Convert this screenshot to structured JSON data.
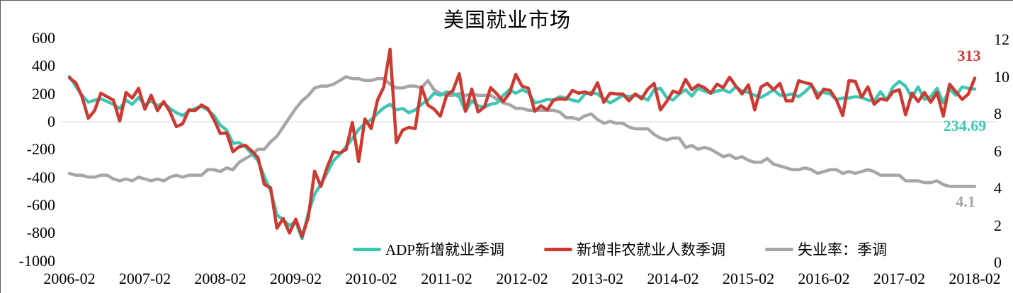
{
  "title": "美国就业市场",
  "legend": {
    "items": [
      {
        "label": "ADP新增就业季调",
        "color": "#3EC6B4"
      },
      {
        "label": "新增非农就业人数季调",
        "color": "#CB3A33"
      },
      {
        "label": "失业率：季调",
        "color": "#A6A6A6"
      }
    ]
  },
  "annotations": {
    "nfp_last": "313",
    "adp_last": "234.69",
    "unemp_last": "4.1"
  },
  "colors": {
    "adp": "#3EC6B4",
    "nonfarm": "#CB3A33",
    "unemployment": "#A6A6A6",
    "gridline": "#D6D6D6",
    "text": "#000000"
  },
  "chart_data": {
    "type": "line",
    "title": "美国就业市场",
    "x_start": "2006-02",
    "x_end": "2018-02",
    "frequency": "monthly",
    "x_tick_labels": [
      "2006-02",
      "2007-02",
      "2008-02",
      "2009-02",
      "2010-02",
      "2011-02",
      "2012-02",
      "2013-02",
      "2014-02",
      "2015-02",
      "2016-02",
      "2017-02",
      "2018-02"
    ],
    "left_axis": {
      "ticks": [
        600,
        400,
        200,
        0,
        -200,
        -400,
        -600,
        -800,
        -1000
      ],
      "range": [
        -1000,
        600
      ]
    },
    "right_axis": {
      "ticks": [
        12,
        10,
        8,
        6,
        4,
        2,
        0
      ],
      "range": [
        0,
        12
      ]
    },
    "gridlines": [
      0
    ],
    "legend_position": "bottom",
    "series": [
      {
        "name": "ADP新增就业季调",
        "axis": "left",
        "color": "#3EC6B4",
        "last_label": "234.69",
        "values": [
          325,
          255,
          190,
          140,
          155,
          165,
          145,
          125,
          95,
          155,
          125,
          175,
          120,
          150,
          115,
          135,
          95,
          65,
          45,
          75,
          95,
          110,
          85,
          45,
          -25,
          -60,
          -155,
          -150,
          -180,
          -230,
          -280,
          -395,
          -495,
          -670,
          -705,
          -745,
          -720,
          -840,
          -655,
          -520,
          -450,
          -365,
          -280,
          -235,
          -180,
          -120,
          -55,
          -15,
          15,
          60,
          100,
          125,
          85,
          95,
          65,
          85,
          125,
          155,
          205,
          190,
          215,
          205,
          180,
          75,
          150,
          115,
          105,
          125,
          135,
          190,
          230,
          205,
          230,
          210,
          135,
          145,
          160,
          155,
          180,
          170,
          155,
          145,
          200,
          210,
          200,
          165,
          135,
          160,
          190,
          180,
          190,
          180,
          155,
          230,
          240,
          175,
          155,
          200,
          230,
          185,
          240,
          220,
          205,
          220,
          230,
          210,
          250,
          220,
          210,
          190,
          175,
          200,
          230,
          190,
          190,
          200,
          180,
          215,
          260,
          205,
          210,
          200,
          160,
          170,
          170,
          180,
          175,
          155,
          150,
          215,
          155,
          250,
          290,
          255,
          175,
          250,
          160,
          180,
          240,
          135,
          235,
          190,
          250,
          240,
          234.69
        ]
      },
      {
        "name": "新增非农就业人数季调",
        "axis": "left",
        "color": "#CB3A33",
        "last_label": "313",
        "values": [
          315,
          280,
          180,
          25,
          80,
          205,
          180,
          155,
          5,
          210,
          170,
          240,
          90,
          190,
          80,
          145,
          70,
          -35,
          -15,
          85,
          80,
          120,
          95,
          15,
          -85,
          -80,
          -215,
          -180,
          -170,
          -210,
          -260,
          -450,
          -475,
          -765,
          -695,
          -800,
          -700,
          -825,
          -685,
          -355,
          -465,
          -325,
          -215,
          -225,
          -200,
          -5,
          -285,
          20,
          -50,
          155,
          250,
          520,
          -150,
          -60,
          -40,
          -50,
          250,
          120,
          90,
          40,
          190,
          225,
          345,
          75,
          235,
          70,
          105,
          245,
          200,
          145,
          205,
          340,
          255,
          240,
          75,
          115,
          85,
          155,
          165,
          160,
          225,
          205,
          215,
          195,
          280,
          140,
          205,
          200,
          200,
          150,
          200,
          165,
          235,
          275,
          85,
          145,
          220,
          205,
          305,
          230,
          265,
          245,
          205,
          270,
          245,
          320,
          255,
          200,
          265,
          85,
          250,
          275,
          230,
          275,
          150,
          150,
          295,
          280,
          270,
          170,
          235,
          225,
          155,
          45,
          295,
          290,
          175,
          250,
          125,
          165,
          155,
          215,
          230,
          50,
          205,
          145,
          210,
          140,
          210,
          40,
          270,
          215,
          160,
          200,
          313
        ]
      },
      {
        "name": "失业率：季调",
        "axis": "right",
        "color": "#A6A6A6",
        "last_label": "4.1",
        "values": [
          4.8,
          4.7,
          4.7,
          4.6,
          4.6,
          4.7,
          4.7,
          4.5,
          4.4,
          4.5,
          4.4,
          4.6,
          4.5,
          4.4,
          4.5,
          4.4,
          4.6,
          4.7,
          4.6,
          4.7,
          4.7,
          4.7,
          5.0,
          5.0,
          4.9,
          5.1,
          5.0,
          5.4,
          5.6,
          5.8,
          6.1,
          6.1,
          6.5,
          6.8,
          7.3,
          7.8,
          8.3,
          8.7,
          9.0,
          9.4,
          9.5,
          9.5,
          9.6,
          9.8,
          10.0,
          9.9,
          9.9,
          9.8,
          9.8,
          9.9,
          9.9,
          9.6,
          9.4,
          9.4,
          9.5,
          9.5,
          9.4,
          9.8,
          9.3,
          9.1,
          9.0,
          9.0,
          9.1,
          9.0,
          9.1,
          9.0,
          9.0,
          9.0,
          8.8,
          8.6,
          8.5,
          8.3,
          8.3,
          8.2,
          8.2,
          8.2,
          8.2,
          8.2,
          8.1,
          7.8,
          7.8,
          7.7,
          7.9,
          8.0,
          7.7,
          7.5,
          7.6,
          7.5,
          7.5,
          7.3,
          7.2,
          7.2,
          7.2,
          6.9,
          6.7,
          6.6,
          6.7,
          6.7,
          6.2,
          6.3,
          6.1,
          6.2,
          6.1,
          5.9,
          5.7,
          5.8,
          5.6,
          5.7,
          5.5,
          5.4,
          5.4,
          5.6,
          5.3,
          5.2,
          5.1,
          5.0,
          5.0,
          5.1,
          5.0,
          4.8,
          4.9,
          5.0,
          5.0,
          4.8,
          4.9,
          4.8,
          4.9,
          5.0,
          4.9,
          4.7,
          4.7,
          4.7,
          4.7,
          4.4,
          4.4,
          4.4,
          4.3,
          4.3,
          4.4,
          4.2,
          4.1,
          4.1,
          4.1,
          4.1,
          4.1
        ]
      }
    ]
  }
}
